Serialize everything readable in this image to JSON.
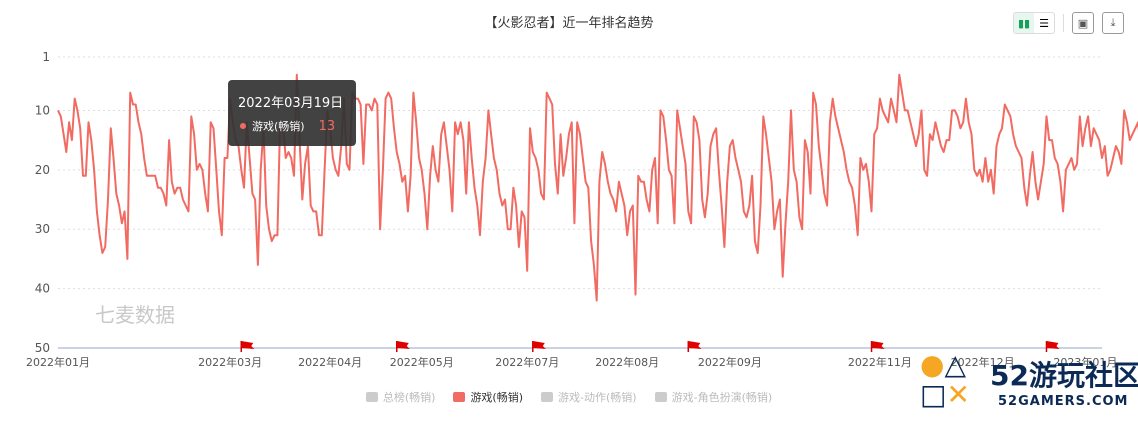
{
  "chart_data": {
    "type": "line",
    "title": "【火影忍者】近一年排名趋势",
    "y_reversed": true,
    "ylim": [
      1,
      50
    ],
    "y_ticks": [
      1,
      10,
      20,
      30,
      40,
      50
    ],
    "x_tick_labels": [
      "2022年01月",
      "2022年03月",
      "2022年04月",
      "2022年05月",
      "2022年07月",
      "2022年08月",
      "2022年09月",
      "2022年11月",
      "2022年12月",
      "2023年01月"
    ],
    "x_range": [
      "2022-01-01",
      "2023-01-12"
    ],
    "x_ticks": [
      "2022-01-01",
      "2022-03-04",
      "2022-04-09",
      "2022-05-12",
      "2022-06-19",
      "2022-07-25",
      "2022-08-31",
      "2022-10-24",
      "2022-11-30",
      "2023-01-06"
    ],
    "flag_dates": [
      "2022-03-08",
      "2022-05-03",
      "2022-06-21",
      "2022-08-16",
      "2022-10-21",
      "2022-12-23"
    ],
    "grid": true,
    "legend_position": "bottom",
    "series_color": "#f16b62",
    "legend": [
      {
        "name": "总榜(畅销)",
        "active": false
      },
      {
        "name": "游戏(畅销)",
        "active": true
      },
      {
        "name": "游戏-动作(畅销)",
        "active": false
      },
      {
        "name": "游戏-角色扮演(畅销)",
        "active": false
      }
    ],
    "series": [
      {
        "name": "游戏(畅销)",
        "start_date": "2022-01-01",
        "values": [
          10,
          11,
          14,
          17,
          12,
          15,
          8,
          10,
          13,
          21,
          21,
          12,
          15,
          20,
          27,
          31,
          34,
          33,
          25,
          13,
          18,
          24,
          26,
          29,
          27,
          35,
          7,
          9,
          9,
          12,
          14,
          18,
          21,
          21,
          21,
          21,
          23,
          23,
          24,
          26,
          15,
          22,
          24,
          23,
          23,
          25,
          26,
          27,
          11,
          14,
          20,
          19,
          20,
          24,
          27,
          12,
          13,
          20,
          27,
          31,
          18,
          18,
          8,
          12,
          15,
          16,
          20,
          23,
          12,
          18,
          24,
          25,
          36,
          20,
          13,
          26,
          30,
          32,
          31,
          31,
          12,
          12,
          18,
          17,
          18,
          21,
          4,
          15,
          25,
          19,
          16,
          26,
          27,
          27,
          31,
          31,
          20,
          10,
          13,
          18,
          20,
          21,
          16,
          8,
          19,
          20,
          7,
          8,
          8,
          9,
          19,
          9,
          9,
          10,
          8,
          9,
          30,
          20,
          8,
          7,
          8,
          13,
          17,
          19,
          22,
          21,
          27,
          21,
          7,
          12,
          18,
          20,
          24,
          30,
          21,
          16,
          20,
          22,
          14,
          12,
          16,
          20,
          27,
          12,
          14,
          12,
          15,
          24,
          12,
          18,
          23,
          26,
          31,
          22,
          18,
          10,
          14,
          18,
          20,
          24,
          26,
          25,
          30,
          30,
          23,
          26,
          33,
          27,
          28,
          37,
          13,
          17,
          18,
          20,
          24,
          25,
          7,
          8,
          9,
          19,
          24,
          14,
          21,
          18,
          14,
          12,
          29,
          12,
          14,
          18,
          22,
          23,
          32,
          36,
          42,
          22,
          17,
          19,
          22,
          24,
          25,
          27,
          22,
          24,
          26,
          31,
          27,
          26,
          41,
          21,
          22,
          22,
          25,
          27,
          20,
          18,
          29,
          10,
          11,
          15,
          20,
          21,
          29,
          10,
          13,
          16,
          19,
          27,
          29,
          11,
          12,
          15,
          25,
          28,
          24,
          16,
          14,
          13,
          20,
          26,
          33,
          22,
          16,
          15,
          18,
          20,
          22,
          27,
          28,
          26,
          21,
          32,
          34,
          26,
          11,
          14,
          18,
          22,
          30,
          27,
          25,
          38,
          29,
          22,
          10,
          20,
          22,
          28,
          30,
          15,
          17,
          24,
          7,
          9,
          16,
          20,
          24,
          26,
          12,
          8,
          11,
          13,
          15,
          17,
          20,
          22,
          23,
          26,
          31,
          18,
          20,
          19,
          22,
          27,
          14,
          13,
          8,
          10,
          11,
          12,
          8,
          10,
          12,
          4,
          7,
          10,
          10,
          12,
          14,
          16,
          14,
          10,
          20,
          21,
          14,
          15,
          12,
          14,
          16,
          17,
          15,
          15,
          10,
          10,
          11,
          13,
          12,
          8,
          12,
          14,
          20,
          21,
          20,
          22,
          18,
          22,
          20,
          24,
          16,
          14,
          13,
          9,
          10,
          11,
          14,
          16,
          17,
          18,
          23,
          26,
          21,
          17,
          22,
          25,
          22,
          19,
          11,
          15,
          15,
          18,
          19,
          22,
          27,
          20,
          19,
          18,
          20,
          19,
          11,
          16,
          13,
          11,
          16,
          13,
          14,
          15,
          18,
          16,
          21,
          20,
          18,
          16,
          17,
          19,
          10,
          12,
          15,
          14,
          13,
          12,
          17,
          20,
          13,
          14,
          18,
          19,
          20,
          22,
          17,
          16,
          11,
          11,
          13,
          14,
          15,
          16,
          19,
          22,
          17,
          14,
          12,
          11,
          10,
          10,
          10,
          13,
          16,
          15,
          13,
          13,
          12,
          15,
          18,
          19,
          17,
          16,
          15,
          12,
          13,
          15,
          14,
          16,
          15,
          16,
          18,
          22,
          24,
          21,
          19,
          17,
          15,
          14,
          20,
          23,
          26,
          27,
          22,
          18,
          16,
          8,
          9,
          13,
          17,
          14,
          12,
          11,
          14,
          15,
          16,
          17,
          20,
          21,
          18,
          16,
          15,
          13,
          11,
          10,
          10,
          10,
          12,
          14,
          16,
          15,
          12,
          10,
          10,
          11,
          13,
          13,
          14,
          16,
          17,
          18,
          21,
          20,
          17,
          15,
          13,
          12,
          13,
          14
        ]
      }
    ]
  },
  "tooltip": {
    "date": "2022年03月19日",
    "series": "游戏(畅销)",
    "value": "13"
  },
  "watermark": "七麦数据",
  "logo": {
    "name": "52游玩社区",
    "url": "52GAMERS.COM"
  }
}
